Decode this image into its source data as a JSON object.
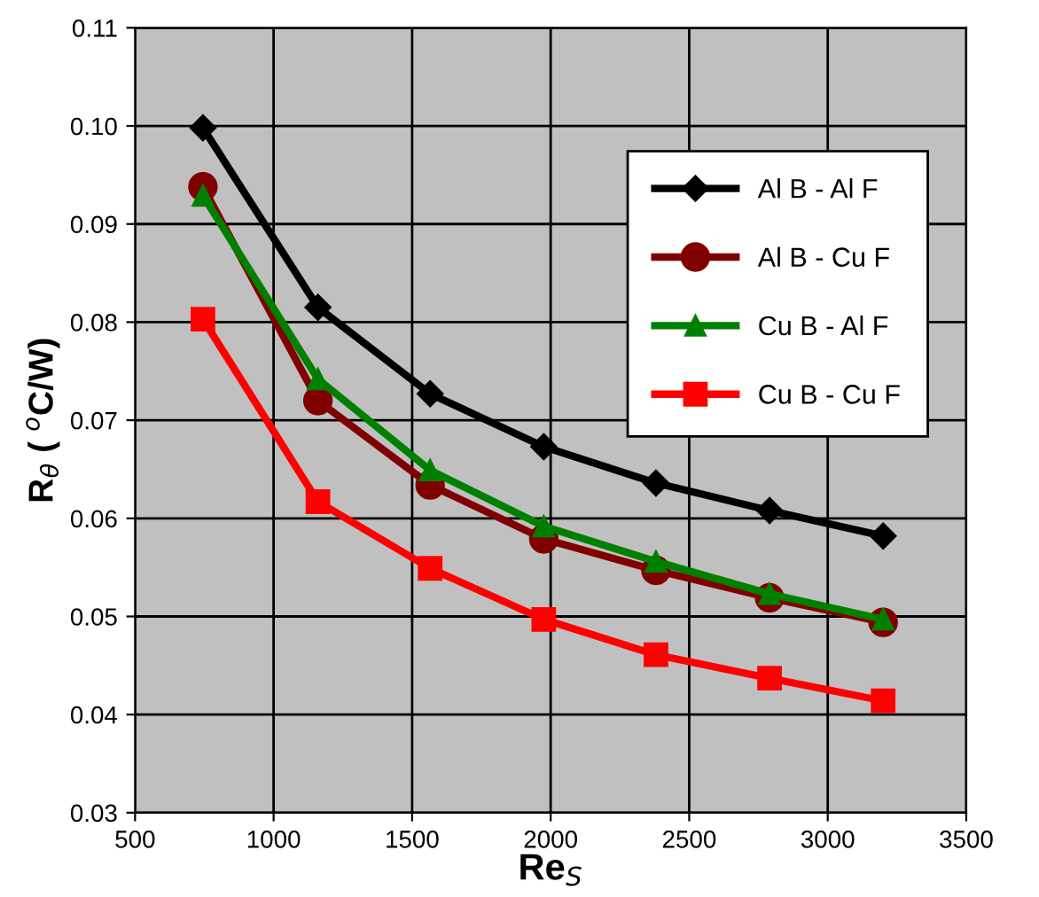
{
  "chart_data": {
    "type": "line",
    "xlabel": "Re$_{S}$",
    "ylabel": "R$_{θ}$ ( $^{o}$C/W)",
    "x": [
      745,
      1160,
      1565,
      1975,
      2380,
      2790,
      3200
    ],
    "series": [
      {
        "name": "Al B - Al F",
        "color": "#000000",
        "marker": "diamond",
        "values": [
          0.0998,
          0.0815,
          0.0727,
          0.0673,
          0.0636,
          0.0608,
          0.0582
        ]
      },
      {
        "name": "Al B - Cu F",
        "color": "#800000",
        "marker": "circle",
        "values": [
          0.0938,
          0.072,
          0.0634,
          0.0579,
          0.0547,
          0.0519,
          0.0494
        ]
      },
      {
        "name": "Cu B - Al F",
        "color": "#008000",
        "marker": "triangle",
        "values": [
          0.0929,
          0.0742,
          0.0649,
          0.0592,
          0.0556,
          0.0523,
          0.0497
        ]
      },
      {
        "name": "Cu B - Cu F",
        "color": "#ff0000",
        "marker": "square",
        "values": [
          0.0803,
          0.0617,
          0.0549,
          0.0497,
          0.0461,
          0.0437,
          0.0414
        ]
      }
    ],
    "xlim": [
      500,
      3500
    ],
    "xticks": [
      500,
      1000,
      1500,
      2000,
      2500,
      3000,
      3500
    ],
    "ylim": [
      0.03,
      0.11
    ],
    "yticks": [
      {
        "value": 0.03,
        "label": "0.03"
      },
      {
        "value": 0.04,
        "label": "0.04"
      },
      {
        "value": 0.05,
        "label": "0.05"
      },
      {
        "value": 0.06,
        "label": "0.06"
      },
      {
        "value": 0.07,
        "label": "0.07"
      },
      {
        "value": 0.08,
        "label": "0.08"
      },
      {
        "value": 0.09,
        "label": "0.09"
      },
      {
        "value": 0.1,
        "label": "0.10"
      },
      {
        "value": 0.11,
        "label": "0.11"
      }
    ],
    "grid": true,
    "legend": "top right",
    "line_style": "solid"
  }
}
